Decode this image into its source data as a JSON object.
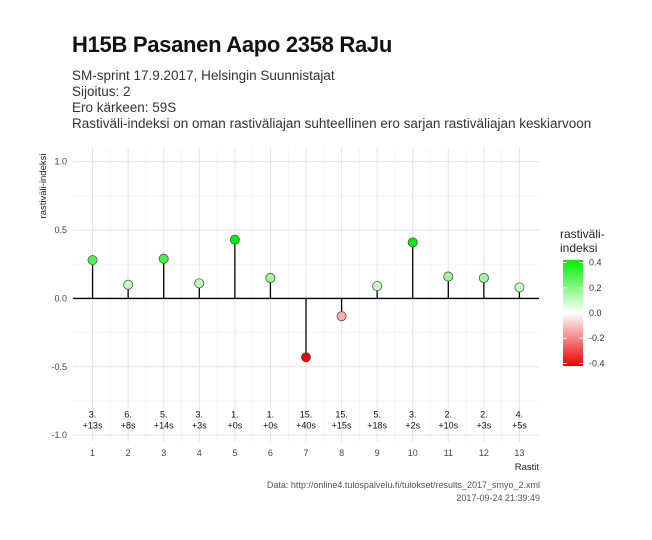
{
  "header": {
    "title": "H15B Pasanen Aapo 2358 RaJu",
    "subtitle_lines": [
      "SM-sprint 17.9.2017, Helsingin Suunnistajat",
      "Sijoitus: 2",
      "Ero kärkeen: 59S",
      "Rastiväli-indeksi on oman rastiväliajan suhteellinen ero sarjan rastiväliajan keskiarvoon"
    ]
  },
  "caption": {
    "source": "Data: http://online4.tulospalvelu.fi/tulokset/results_2017_smyo_2.xml",
    "timestamp": "2017-09-24 21:39:49"
  },
  "chart_data": {
    "type": "lollipop",
    "xlabel": "Rastit",
    "ylabel": "rastiväli-indeksi",
    "ylim": [
      -1.05,
      1.1
    ],
    "yticks": [
      -1.0,
      -0.5,
      0.0,
      0.5,
      1.0
    ],
    "ytick_labels": [
      "-1.0",
      "-0.5",
      "0.0",
      "0.5",
      "1.0"
    ],
    "grid": true,
    "x": [
      1,
      2,
      3,
      4,
      5,
      6,
      7,
      8,
      9,
      10,
      11,
      12,
      13
    ],
    "values": [
      0.28,
      0.1,
      0.29,
      0.11,
      0.43,
      0.15,
      -0.43,
      -0.13,
      0.09,
      0.41,
      0.16,
      0.15,
      0.08
    ],
    "rank_labels": [
      "3.",
      "6.",
      "5.",
      "3.",
      "1.",
      "1.",
      "15.",
      "15.",
      "5.",
      "3.",
      "2.",
      "2.",
      "4."
    ],
    "diff_labels": [
      "+13s",
      "+8s",
      "+14s",
      "+3s",
      "+0s",
      "+0s",
      "+40s",
      "+15s",
      "+18s",
      "+2s",
      "+10s",
      "+3s",
      "+5s"
    ],
    "legend": {
      "title_lines": [
        "rastiväli-",
        "indeksi"
      ],
      "position": "right",
      "ticks": [
        0.4,
        0.2,
        0.0,
        -0.2,
        -0.4
      ],
      "tick_labels": [
        "0.4",
        "0.2",
        "0.0",
        "-0.2",
        "-0.4"
      ]
    },
    "colors": {
      "positive": "#00ee00",
      "neutral": "#ffffff",
      "negative": "#ee0000",
      "stem": "#000000",
      "grid": "#e4e4e4"
    }
  }
}
